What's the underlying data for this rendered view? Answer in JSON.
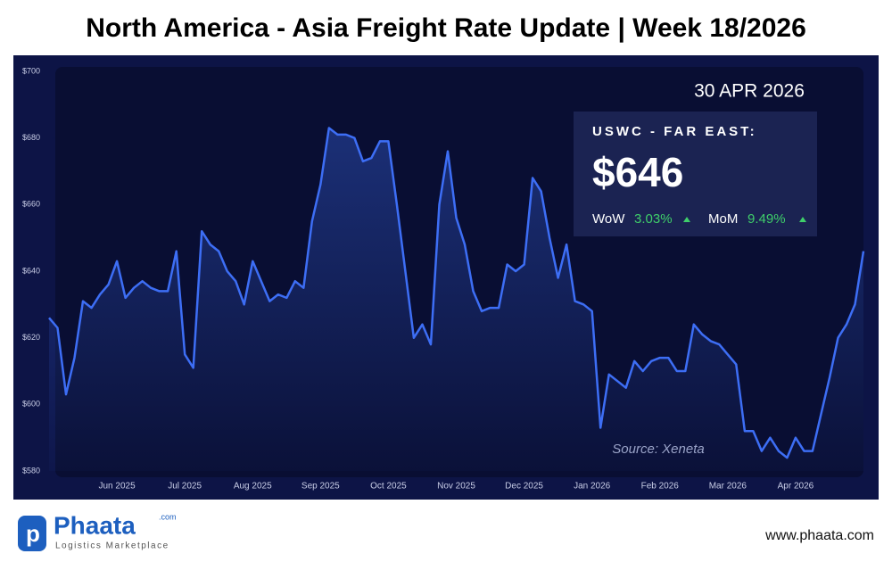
{
  "header": {
    "title": "North America - Asia Freight Rate Update | Week 18/2026"
  },
  "chart_data": {
    "type": "line",
    "categories": [
      null,
      null,
      null,
      null,
      null,
      null,
      null,
      null,
      "Jun 2025",
      null,
      null,
      null,
      null,
      null,
      null,
      null,
      "Jul 2025",
      null,
      null,
      null,
      null,
      null,
      null,
      null,
      "Aug 2025",
      null,
      null,
      null,
      null,
      null,
      null,
      null,
      "Sep 2025",
      null,
      null,
      null,
      null,
      null,
      null,
      null,
      "Oct 2025",
      null,
      null,
      null,
      null,
      null,
      null,
      null,
      "Nov 2025",
      null,
      null,
      null,
      null,
      null,
      null,
      null,
      "Dec 2025",
      null,
      null,
      null,
      null,
      null,
      null,
      null,
      "Jan 2026",
      null,
      null,
      null,
      null,
      null,
      null,
      null,
      "Feb 2026",
      null,
      null,
      null,
      null,
      null,
      null,
      null,
      "Mar 2026",
      null,
      null,
      null,
      null,
      null,
      null,
      null,
      "Apr 2026",
      null,
      null,
      null,
      null,
      null,
      null,
      null,
      null
    ],
    "series": [
      {
        "name": "USWC - FAR EAST",
        "color": "#3d6ef5",
        "values": [
          626,
          623,
          603,
          614,
          631,
          629,
          633,
          636,
          643,
          632,
          635,
          637,
          635,
          634,
          634,
          646,
          615,
          611,
          652,
          648,
          646,
          640,
          637,
          630,
          643,
          637,
          631,
          633,
          632,
          637,
          635,
          655,
          666,
          683,
          681,
          681,
          680,
          673,
          674,
          679,
          679,
          660,
          640,
          620,
          624,
          618,
          660,
          676,
          656,
          648,
          634,
          628,
          629,
          629,
          642,
          640,
          642,
          668,
          664,
          650,
          638,
          648,
          631,
          630,
          628,
          593,
          609,
          607,
          605,
          613,
          610,
          613,
          614,
          614,
          610,
          610,
          624,
          621,
          619,
          618,
          615,
          612,
          592,
          592,
          586,
          590,
          586,
          584,
          590,
          586,
          586,
          597,
          608,
          620,
          624,
          630,
          646
        ]
      }
    ],
    "ylim": [
      580,
      700
    ],
    "yticks": [
      {
        "value": 580,
        "label": "$580"
      },
      {
        "value": 600,
        "label": "$600"
      },
      {
        "value": 620,
        "label": "$620"
      },
      {
        "value": 640,
        "label": "$640"
      },
      {
        "value": 660,
        "label": "$660"
      },
      {
        "value": 680,
        "label": "$680"
      },
      {
        "value": 700,
        "label": "$700"
      }
    ],
    "source": "Source: Xeneta"
  },
  "panel": {
    "date": "30 APR 2026",
    "route": "USWC - FAR EAST:",
    "price": "$646",
    "wow_label": "WoW",
    "wow": "3.03%",
    "mom_label": "MoM",
    "mom": "9.49%"
  },
  "footer": {
    "brand": "Phaata",
    "brand_suffix": ".com",
    "tagline": "Logistics Marketplace",
    "url": "www.phaata.com"
  }
}
